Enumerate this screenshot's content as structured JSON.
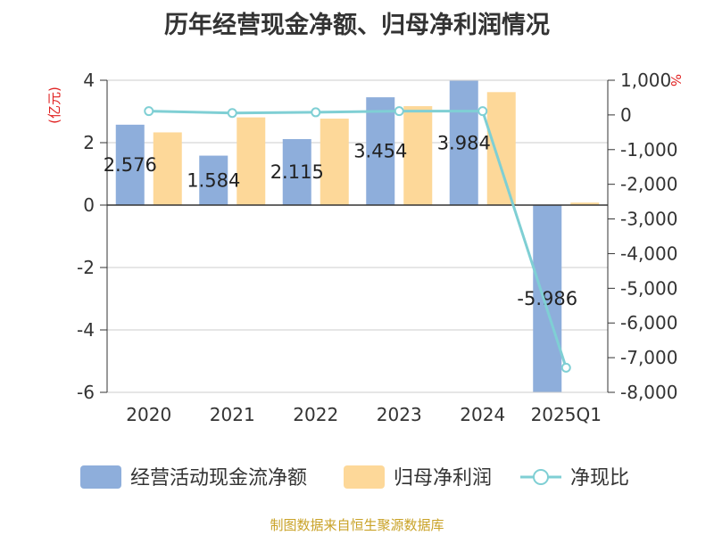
{
  "title": "历年经营现金净额、归母净利润情况",
  "source": "制图数据来自恒生聚源数据库",
  "chart_data": {
    "type": "bar",
    "categories": [
      "2020",
      "2021",
      "2022",
      "2023",
      "2024",
      "2025Q1"
    ],
    "left_axis": {
      "unit": "(亿元)",
      "min": -6,
      "max": 4,
      "ticks": [
        "4",
        "2",
        "0",
        "-2",
        "-4",
        "-6"
      ],
      "tick_values": [
        4,
        2,
        0,
        -2,
        -4,
        -6
      ]
    },
    "right_axis": {
      "unit": "%",
      "min": -8000,
      "max": 1000,
      "ticks": [
        "1,000",
        "0",
        "-1,000",
        "-2,000",
        "-3,000",
        "-4,000",
        "-5,000",
        "-6,000",
        "-7,000",
        "-8,000"
      ],
      "tick_values": [
        1000,
        0,
        -1000,
        -2000,
        -3000,
        -4000,
        -5000,
        -6000,
        -7000,
        -8000
      ]
    },
    "series": [
      {
        "name": "经营活动现金流净额",
        "type": "bar",
        "axis": "left",
        "color": "#8eaedb",
        "values": [
          2.576,
          1.584,
          2.115,
          3.454,
          3.984,
          -5.986
        ],
        "labels": [
          "2.576",
          "1.584",
          "2.115",
          "3.454",
          "3.984",
          "-5.986"
        ]
      },
      {
        "name": "归母净利润",
        "type": "bar",
        "axis": "left",
        "color": "#fdd899",
        "values": [
          2.33,
          2.81,
          2.77,
          3.17,
          3.62,
          0.08
        ]
      },
      {
        "name": "净现比",
        "type": "line",
        "axis": "right",
        "color": "#7fcfd4",
        "values": [
          110,
          56,
          76,
          109,
          110,
          -7289
        ]
      }
    ],
    "legend_position": "bottom",
    "grid": true
  }
}
